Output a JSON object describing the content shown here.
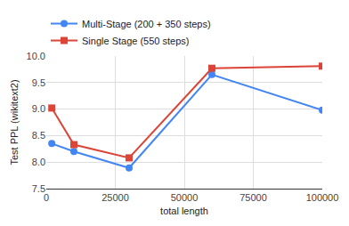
{
  "chart_data": {
    "type": "line",
    "x_label": "total length",
    "y_label": "Test PPL (wikitext2)",
    "xlim": [
      0,
      100000
    ],
    "xticks": [
      0,
      25000,
      50000,
      75000,
      100000
    ],
    "ylim": [
      7.5,
      10.0
    ],
    "yticks": [
      7.5,
      {
        "value": 8,
        "label": "8.0"
      },
      8.5,
      {
        "value": 9,
        "label": "9.0"
      },
      9.5,
      {
        "value": 10,
        "label": "10.0"
      }
    ],
    "grid": true,
    "legend": "top",
    "series": [
      {
        "name": "Multi-Stage (200 + 350 steps)",
        "color": "#4285f4",
        "marker": "circle",
        "x": [
          2000,
          10000,
          30000,
          60000,
          100000
        ],
        "values": [
          8.35,
          8.2,
          7.89,
          9.65,
          8.98
        ]
      },
      {
        "name": "Single Stage (550 steps)",
        "color": "#db4437",
        "marker": "square",
        "x": [
          2000,
          10000,
          30000,
          60000,
          100000
        ],
        "values": [
          9.02,
          8.33,
          8.08,
          9.77,
          9.81
        ]
      }
    ]
  }
}
